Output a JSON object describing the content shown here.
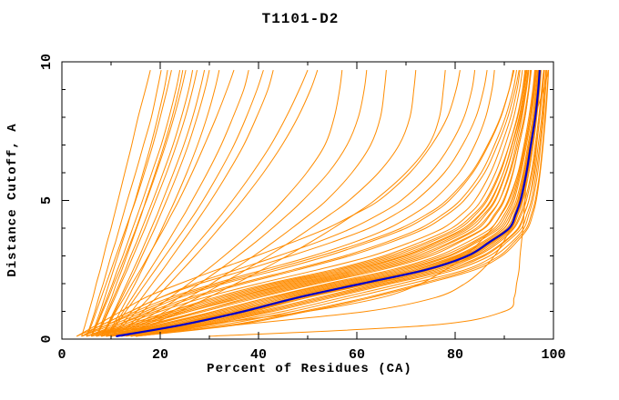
{
  "chart_data": {
    "type": "line",
    "title": "T1101-D2",
    "xlabel": "Percent of Residues (CA)",
    "ylabel": "Distance Cutoff, A",
    "xlim": [
      0,
      100
    ],
    "ylim": [
      0,
      10
    ],
    "x_ticks": [
      0,
      20,
      40,
      60,
      80,
      100
    ],
    "x_tick_labels": [
      "0",
      "20",
      "40",
      "60",
      "80",
      "100"
    ],
    "x_minor_ticks": [
      10,
      30,
      50,
      70,
      90
    ],
    "y_ticks": [
      0,
      5,
      10
    ],
    "y_tick_labels": [
      "0",
      "5",
      "10"
    ],
    "y_minor_ticks": [
      1,
      2,
      3,
      4,
      6,
      7,
      8,
      9
    ],
    "grid": false,
    "legend": "none",
    "frame_color": "#000000",
    "background_color": "#ffffff",
    "cutoffs": [
      0.1,
      0.5,
      1,
      1.5,
      2,
      2.5,
      3,
      3.5,
      4,
      4.5,
      5,
      6,
      7,
      8,
      9,
      9.7
    ],
    "highlight_model": {
      "name": "highlighted-model",
      "color": "#0000cc",
      "percents": [
        11,
        24,
        37,
        48,
        61,
        74,
        82.5,
        87,
        91,
        92.3,
        93.3,
        94.5,
        95.4,
        96.3,
        96.9,
        97.2
      ]
    },
    "models": {
      "name": "model-curves",
      "color": "#ff8c00",
      "percents_per_model": [
        [
          4,
          4.7,
          5.5,
          6.3,
          7,
          7.8,
          8.5,
          9.2,
          10,
          10.7,
          11.4,
          12.8,
          14.2,
          15.5,
          17,
          18
        ],
        [
          5,
          5.8,
          6.7,
          7.5,
          8.4,
          9.2,
          10,
          10.9,
          11.7,
          12.5,
          13.3,
          15,
          16.6,
          18.2,
          19.4,
          20.2
        ],
        [
          5,
          6,
          7,
          8,
          9,
          10,
          11,
          12,
          13,
          14,
          15,
          16.8,
          18.5,
          20,
          21.4,
          22.3
        ],
        [
          6,
          7,
          8.1,
          9.2,
          10.3,
          11.3,
          12.4,
          13.4,
          14.4,
          15.4,
          16.4,
          18.3,
          20.2,
          21.8,
          23.2,
          24
        ],
        [
          6,
          7.1,
          8.3,
          9.5,
          10.6,
          11.8,
          12.9,
          14,
          15.1,
          16.1,
          17.2,
          19.2,
          21.1,
          22.8,
          24.3,
          25.2
        ],
        [
          7,
          8.1,
          9.3,
          10.5,
          11.7,
          12.9,
          14,
          15.2,
          16.3,
          17.4,
          18.5,
          20.6,
          22.6,
          24.3,
          25.8,
          26.6
        ],
        [
          7,
          8.2,
          9.5,
          10.8,
          12,
          13.3,
          14.5,
          15.7,
          16.9,
          18,
          19.1,
          21.3,
          23.3,
          25.1,
          26.6,
          27.5
        ],
        [
          8,
          9.2,
          10.6,
          11.9,
          13.2,
          14.5,
          15.8,
          17,
          18.2,
          19.4,
          20.5,
          22.7,
          24.8,
          26.6,
          28.1,
          29
        ],
        [
          8,
          9.3,
          10.8,
          12.2,
          13.6,
          15,
          16.3,
          17.6,
          18.9,
          20.1,
          21.3,
          23.6,
          25.7,
          27.5,
          29.1,
          30
        ],
        [
          9,
          10.4,
          11.9,
          13.4,
          14.9,
          16.3,
          17.7,
          19.1,
          20.4,
          21.7,
          23,
          25.4,
          27.6,
          29.5,
          31.1,
          32
        ],
        [
          7,
          7.9,
          9,
          10.1,
          11.1,
          12.2,
          13.2,
          14.2,
          15.2,
          16.2,
          17.1,
          19,
          20.8,
          22.4,
          23.8,
          24.6
        ],
        [
          6,
          6.8,
          7.8,
          8.7,
          9.6,
          10.5,
          11.4,
          12.3,
          13.2,
          14,
          14.9,
          16.5,
          18.1,
          19.5,
          20.8,
          21.5
        ],
        [
          8,
          9.5,
          11,
          12.7,
          14.3,
          16,
          17.6,
          19.2,
          20.8,
          22.3,
          23.8,
          26.5,
          29,
          31.4,
          33.6,
          35
        ],
        [
          9,
          10.7,
          12.5,
          14.3,
          16.1,
          17.9,
          19.7,
          21.5,
          23.2,
          24.9,
          26.5,
          29.6,
          32.4,
          34.8,
          37,
          38
        ],
        [
          9,
          11,
          13,
          15,
          17,
          19,
          21,
          23,
          25,
          26.9,
          28.7,
          32,
          35,
          37.5,
          39.7,
          41
        ],
        [
          10,
          12,
          14.2,
          16.3,
          18.4,
          20.5,
          22.5,
          24.5,
          26.5,
          28.4,
          30.3,
          33.8,
          37,
          39.6,
          41.9,
          43
        ],
        [
          10,
          12.5,
          15.2,
          17.8,
          20.4,
          22.9,
          25.4,
          27.8,
          30.2,
          32.5,
          34.7,
          38.8,
          42.5,
          45.6,
          48.3,
          50
        ],
        [
          11,
          13.7,
          16.5,
          19.2,
          21.9,
          24.5,
          27.1,
          29.6,
          32,
          34.4,
          36.7,
          41,
          44.8,
          48,
          50.6,
          52
        ],
        [
          10,
          14,
          18,
          22,
          25.8,
          29.5,
          33,
          36.3,
          39.4,
          42.3,
          45,
          49.8,
          53.5,
          55.4,
          56.5,
          57
        ],
        [
          11,
          15,
          19.5,
          23.8,
          28,
          32,
          35.8,
          39.4,
          42.8,
          46,
          49,
          54.2,
          58,
          60.3,
          61.5,
          62
        ],
        [
          11,
          16,
          21,
          25.8,
          30.4,
          34.8,
          39,
          43,
          46.8,
          50.4,
          53.8,
          59,
          62.8,
          64.8,
          65.6,
          66
        ],
        [
          12,
          17,
          22.4,
          27.6,
          32.6,
          37.4,
          42,
          46.4,
          50.6,
          54.6,
          58.4,
          64.4,
          68.6,
          70.8,
          71.6,
          72
        ],
        [
          12,
          18,
          24,
          29.8,
          35.4,
          40.7,
          45.8,
          50.6,
          55.2,
          59.5,
          63.6,
          70,
          74.6,
          76.8,
          77.6,
          78
        ],
        [
          3,
          7,
          12,
          17,
          24,
          31.5,
          39.5,
          47,
          54,
          59.5,
          64.5,
          70.8,
          75.2,
          78.4,
          80.2,
          81
        ],
        [
          4,
          8,
          14,
          20,
          27,
          35.5,
          44,
          52,
          59,
          64.5,
          69,
          75,
          79,
          81.8,
          83.4,
          84
        ],
        [
          3,
          8,
          14,
          20,
          28,
          37.5,
          46.5,
          55,
          62.5,
          67.8,
          72,
          77.8,
          81.5,
          84.2,
          85.8,
          86.5
        ],
        [
          4,
          9,
          15,
          22,
          31,
          41,
          51,
          59.5,
          66.5,
          71.5,
          75.5,
          80.8,
          84,
          86.2,
          87.5,
          88
        ],
        [
          5,
          11,
          18,
          26,
          36,
          47,
          57.5,
          66,
          73,
          77.5,
          81,
          85.3,
          88,
          90.2,
          91.8,
          92.5
        ],
        [
          4,
          10,
          17,
          24,
          33,
          44,
          54,
          62.5,
          70,
          75,
          78.8,
          83.6,
          86.8,
          89.3,
          91,
          91.8
        ],
        [
          5,
          11,
          19,
          27,
          37,
          48,
          58.5,
          67,
          74,
          78.4,
          81.8,
          86,
          88.6,
          90.7,
          92.2,
          93
        ],
        [
          4,
          9,
          16,
          23,
          32,
          42.5,
          52.5,
          61.5,
          69,
          74.2,
          78.2,
          83.3,
          86.6,
          89.2,
          91,
          92
        ],
        [
          8,
          18,
          29,
          40,
          52,
          65,
          75,
          81,
          86,
          88.3,
          90,
          91.8,
          93,
          94.2,
          95,
          95.4
        ],
        [
          7,
          17,
          28,
          38,
          50,
          63,
          73,
          79.5,
          84.8,
          87.2,
          89,
          91,
          92.4,
          93.6,
          94.5,
          95
        ],
        [
          9,
          20,
          31,
          42,
          54,
          67,
          76.5,
          82.5,
          87.3,
          89.4,
          91,
          92.8,
          94,
          95,
          95.8,
          96.2
        ],
        [
          7,
          16,
          26,
          36,
          48,
          61,
          71,
          78,
          83.5,
          86.2,
          88.2,
          90.4,
          92,
          93.3,
          94.3,
          94.8
        ],
        [
          6,
          15,
          25,
          35,
          46,
          59,
          69.5,
          76.5,
          82.3,
          85.2,
          87.4,
          89.8,
          91.5,
          93,
          94,
          94.5
        ],
        [
          8,
          18,
          28,
          39,
          51,
          64,
          74,
          80.5,
          85.8,
          88,
          89.8,
          91.7,
          93,
          94.2,
          95,
          95.5
        ],
        [
          6,
          14,
          23,
          33,
          44,
          57,
          67.5,
          75,
          81,
          84.2,
          86.5,
          89.2,
          91,
          92.6,
          93.7,
          94.2
        ],
        [
          7,
          16,
          26,
          37,
          49,
          62,
          72,
          79,
          84.3,
          87,
          89,
          91.2,
          92.7,
          94,
          94.9,
          95.3
        ],
        [
          5,
          13,
          22,
          31,
          42,
          55,
          65.5,
          73,
          79.3,
          82.8,
          85.3,
          88.2,
          90.2,
          91.9,
          93.1,
          93.7
        ],
        [
          6,
          14,
          24,
          34,
          45,
          58,
          68.5,
          76,
          81.8,
          85,
          87.2,
          89.8,
          91.6,
          93.1,
          94.1,
          94.6
        ],
        [
          5,
          12,
          20,
          29,
          40,
          52,
          63,
          71,
          77.5,
          81.3,
          84,
          87.2,
          89.4,
          91.3,
          92.6,
          93.2
        ],
        [
          7,
          15,
          25,
          35,
          47,
          60,
          70,
          77.3,
          82.8,
          85.8,
          88,
          90.3,
          92,
          93.4,
          94.4,
          94.9
        ],
        [
          6,
          13,
          22,
          32,
          43,
          56,
          66.5,
          74.2,
          80.3,
          83.7,
          86.2,
          89,
          91,
          92.7,
          93.8,
          94.4
        ],
        [
          10,
          22,
          35,
          46,
          59,
          72,
          81,
          86,
          90,
          91.5,
          92.7,
          94,
          95,
          96,
          96.6,
          97
        ],
        [
          11,
          23,
          36,
          47,
          60,
          73,
          81.5,
          86.5,
          90.5,
          92,
          93,
          94.2,
          95.2,
          96.1,
          96.7,
          97
        ],
        [
          9,
          21,
          33,
          44,
          57,
          70,
          79,
          84.5,
          89,
          90.8,
          92,
          93.4,
          94.5,
          95.5,
          96.2,
          96.6
        ],
        [
          12,
          25,
          38,
          49,
          62,
          75,
          83,
          87.5,
          91.3,
          92.6,
          93.6,
          94.8,
          95.7,
          96.5,
          97.1,
          97.4
        ],
        [
          10,
          22,
          34,
          45,
          58,
          71,
          80,
          85.5,
          89.5,
          91.2,
          92.4,
          93.8,
          94.8,
          95.8,
          96.4,
          96.8
        ],
        [
          11,
          24,
          36,
          48,
          60,
          73,
          82,
          86.8,
          90.8,
          92.2,
          93.2,
          94.4,
          95.4,
          96.2,
          96.8,
          97.1
        ],
        [
          9,
          20,
          32,
          43,
          56,
          69,
          78.5,
          84,
          88.5,
          90.4,
          91.7,
          93.2,
          94.3,
          95.3,
          96,
          96.4
        ],
        [
          12,
          26,
          39,
          50,
          63,
          76,
          83.5,
          88,
          91.5,
          92.8,
          93.8,
          95,
          95.9,
          96.6,
          97.2,
          97.5
        ],
        [
          10,
          23,
          35,
          46,
          59,
          72,
          80.5,
          86,
          90,
          91.6,
          92.8,
          94.1,
          95.1,
          96,
          96.6,
          96.9
        ],
        [
          11,
          24,
          37,
          49,
          61,
          74,
          82,
          87,
          91,
          92.4,
          93.4,
          94.6,
          95.5,
          96.3,
          96.9,
          97.2
        ],
        [
          8,
          19,
          31,
          42,
          55,
          68,
          77.5,
          83.5,
          88,
          90,
          91.4,
          93,
          94.2,
          95.2,
          95.9,
          96.3
        ],
        [
          12,
          25,
          38,
          50,
          62,
          75,
          83,
          87.6,
          91.2,
          92.5,
          93.5,
          94.7,
          95.6,
          96.4,
          97,
          97.3
        ],
        [
          14,
          29,
          43,
          55,
          67,
          79,
          86,
          90,
          93,
          94,
          95,
          96,
          96.6,
          97.2,
          97.7,
          98
        ],
        [
          14,
          32,
          47,
          59,
          71,
          82,
          88,
          91.5,
          94,
          95,
          95.8,
          96.8,
          97.4,
          98,
          98.4,
          98.7
        ],
        [
          13,
          27,
          41,
          53,
          65,
          77,
          84.5,
          89,
          92,
          93.5,
          94.5,
          95.7,
          96.5,
          97.2,
          97.8,
          98.2
        ],
        [
          15,
          34,
          49,
          62,
          73,
          83,
          89,
          92,
          94.5,
          95.5,
          96.3,
          97.2,
          97.8,
          98.3,
          98.7,
          99
        ],
        [
          15,
          30,
          45,
          57,
          69,
          80,
          87,
          90.5,
          93.5,
          94.6,
          95.5,
          96.5,
          97.2,
          97.8,
          98.2,
          98.5
        ],
        [
          12,
          26,
          40,
          52,
          64,
          76,
          84,
          88.5,
          91.8,
          93.2,
          94.2,
          95.5,
          96.3,
          97,
          97.6,
          98
        ],
        [
          15,
          35,
          50,
          63,
          74,
          84,
          89.5,
          92.5,
          94.8,
          95.8,
          96.5,
          97.3,
          97.9,
          98.4,
          98.8,
          99
        ],
        [
          14,
          28,
          42,
          54,
          66,
          78,
          85.5,
          89.8,
          92.8,
          94,
          95,
          96.2,
          96.9,
          97.6,
          98.1,
          98.5
        ],
        [
          30,
          75,
          90,
          92,
          92.5,
          93,
          93.2,
          93.5,
          93.8,
          94,
          94.2,
          94.6,
          95.2,
          96.2,
          98,
          99
        ],
        [
          15,
          35,
          62,
          76,
          82,
          85.5,
          88,
          89.8,
          91.3,
          92.4,
          93.3,
          94.7,
          95.6,
          96.4,
          97,
          97.4
        ],
        [
          10,
          28,
          50,
          65,
          73,
          78,
          82,
          85,
          87.5,
          89.3,
          90.8,
          92.8,
          94.2,
          95.3,
          96.1,
          96.5
        ]
      ]
    }
  },
  "layout_labels": {
    "plot_region": "plot-frame"
  }
}
